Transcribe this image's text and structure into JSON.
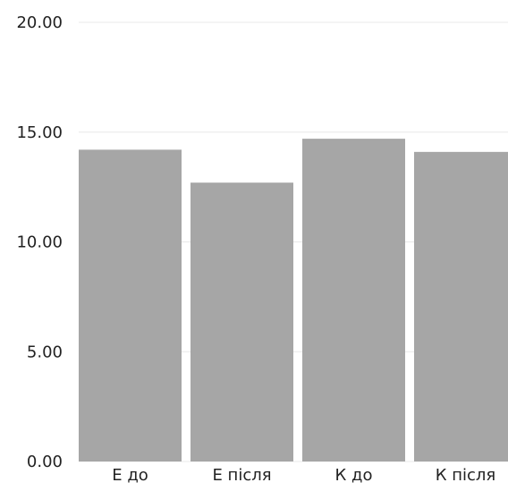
{
  "chart_data": {
    "type": "bar",
    "title": "",
    "xlabel": "",
    "ylabel": "",
    "categories": [
      "Е до",
      "Е після",
      "К до",
      "К після"
    ],
    "values": [
      14.2,
      12.7,
      14.7,
      14.1
    ],
    "ylim": [
      0,
      20
    ],
    "yticks": [
      "0.00",
      "5.00",
      "10.00",
      "15.00",
      "20.00"
    ],
    "grid": true,
    "legend": "none",
    "colors": {
      "bar": "#a6a6a6",
      "grid": "#e8e8e8",
      "text": "#222222"
    }
  }
}
